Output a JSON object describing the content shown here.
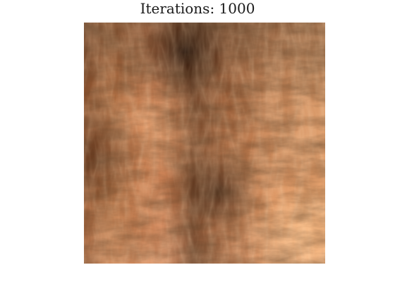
{
  "figure": {
    "title": "Iterations: 1000",
    "colormap": "copper",
    "colors": {
      "base": "#d98a57",
      "light": "#ffb37a",
      "dark": "#2a140a",
      "mid": "#b26b40"
    }
  }
}
